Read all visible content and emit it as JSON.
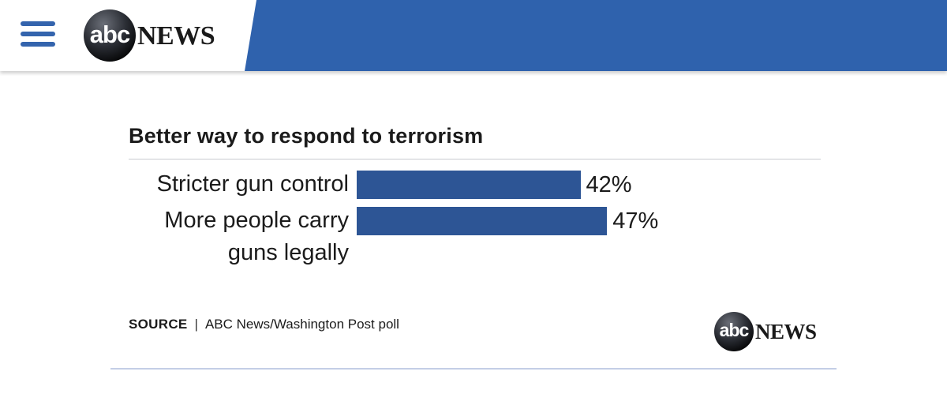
{
  "header": {
    "menu_icon": "hamburger-menu-icon",
    "logo_badge": "abc",
    "logo_word": "NEWS",
    "colors": {
      "bar": "#2f62ad",
      "menu": "#3464ad"
    }
  },
  "chart_data": {
    "type": "bar",
    "orientation": "horizontal",
    "title": "Better way to respond to terrorism",
    "categories": [
      "Stricter gun control",
      "More people carry guns legally"
    ],
    "category_lines": [
      [
        "Stricter gun control"
      ],
      [
        "More people carry",
        "guns legally"
      ]
    ],
    "values": [
      42,
      47
    ],
    "value_labels": [
      "42%",
      "47%"
    ],
    "unit": "%",
    "xlim": [
      0,
      100
    ],
    "grid": false,
    "legend": "none",
    "bar_color": "#2d5595"
  },
  "footer": {
    "source_key": "SOURCE",
    "source_sep": "|",
    "source_text": "ABC News/Washington Post poll",
    "logo_badge": "abc",
    "logo_word": "NEWS"
  }
}
